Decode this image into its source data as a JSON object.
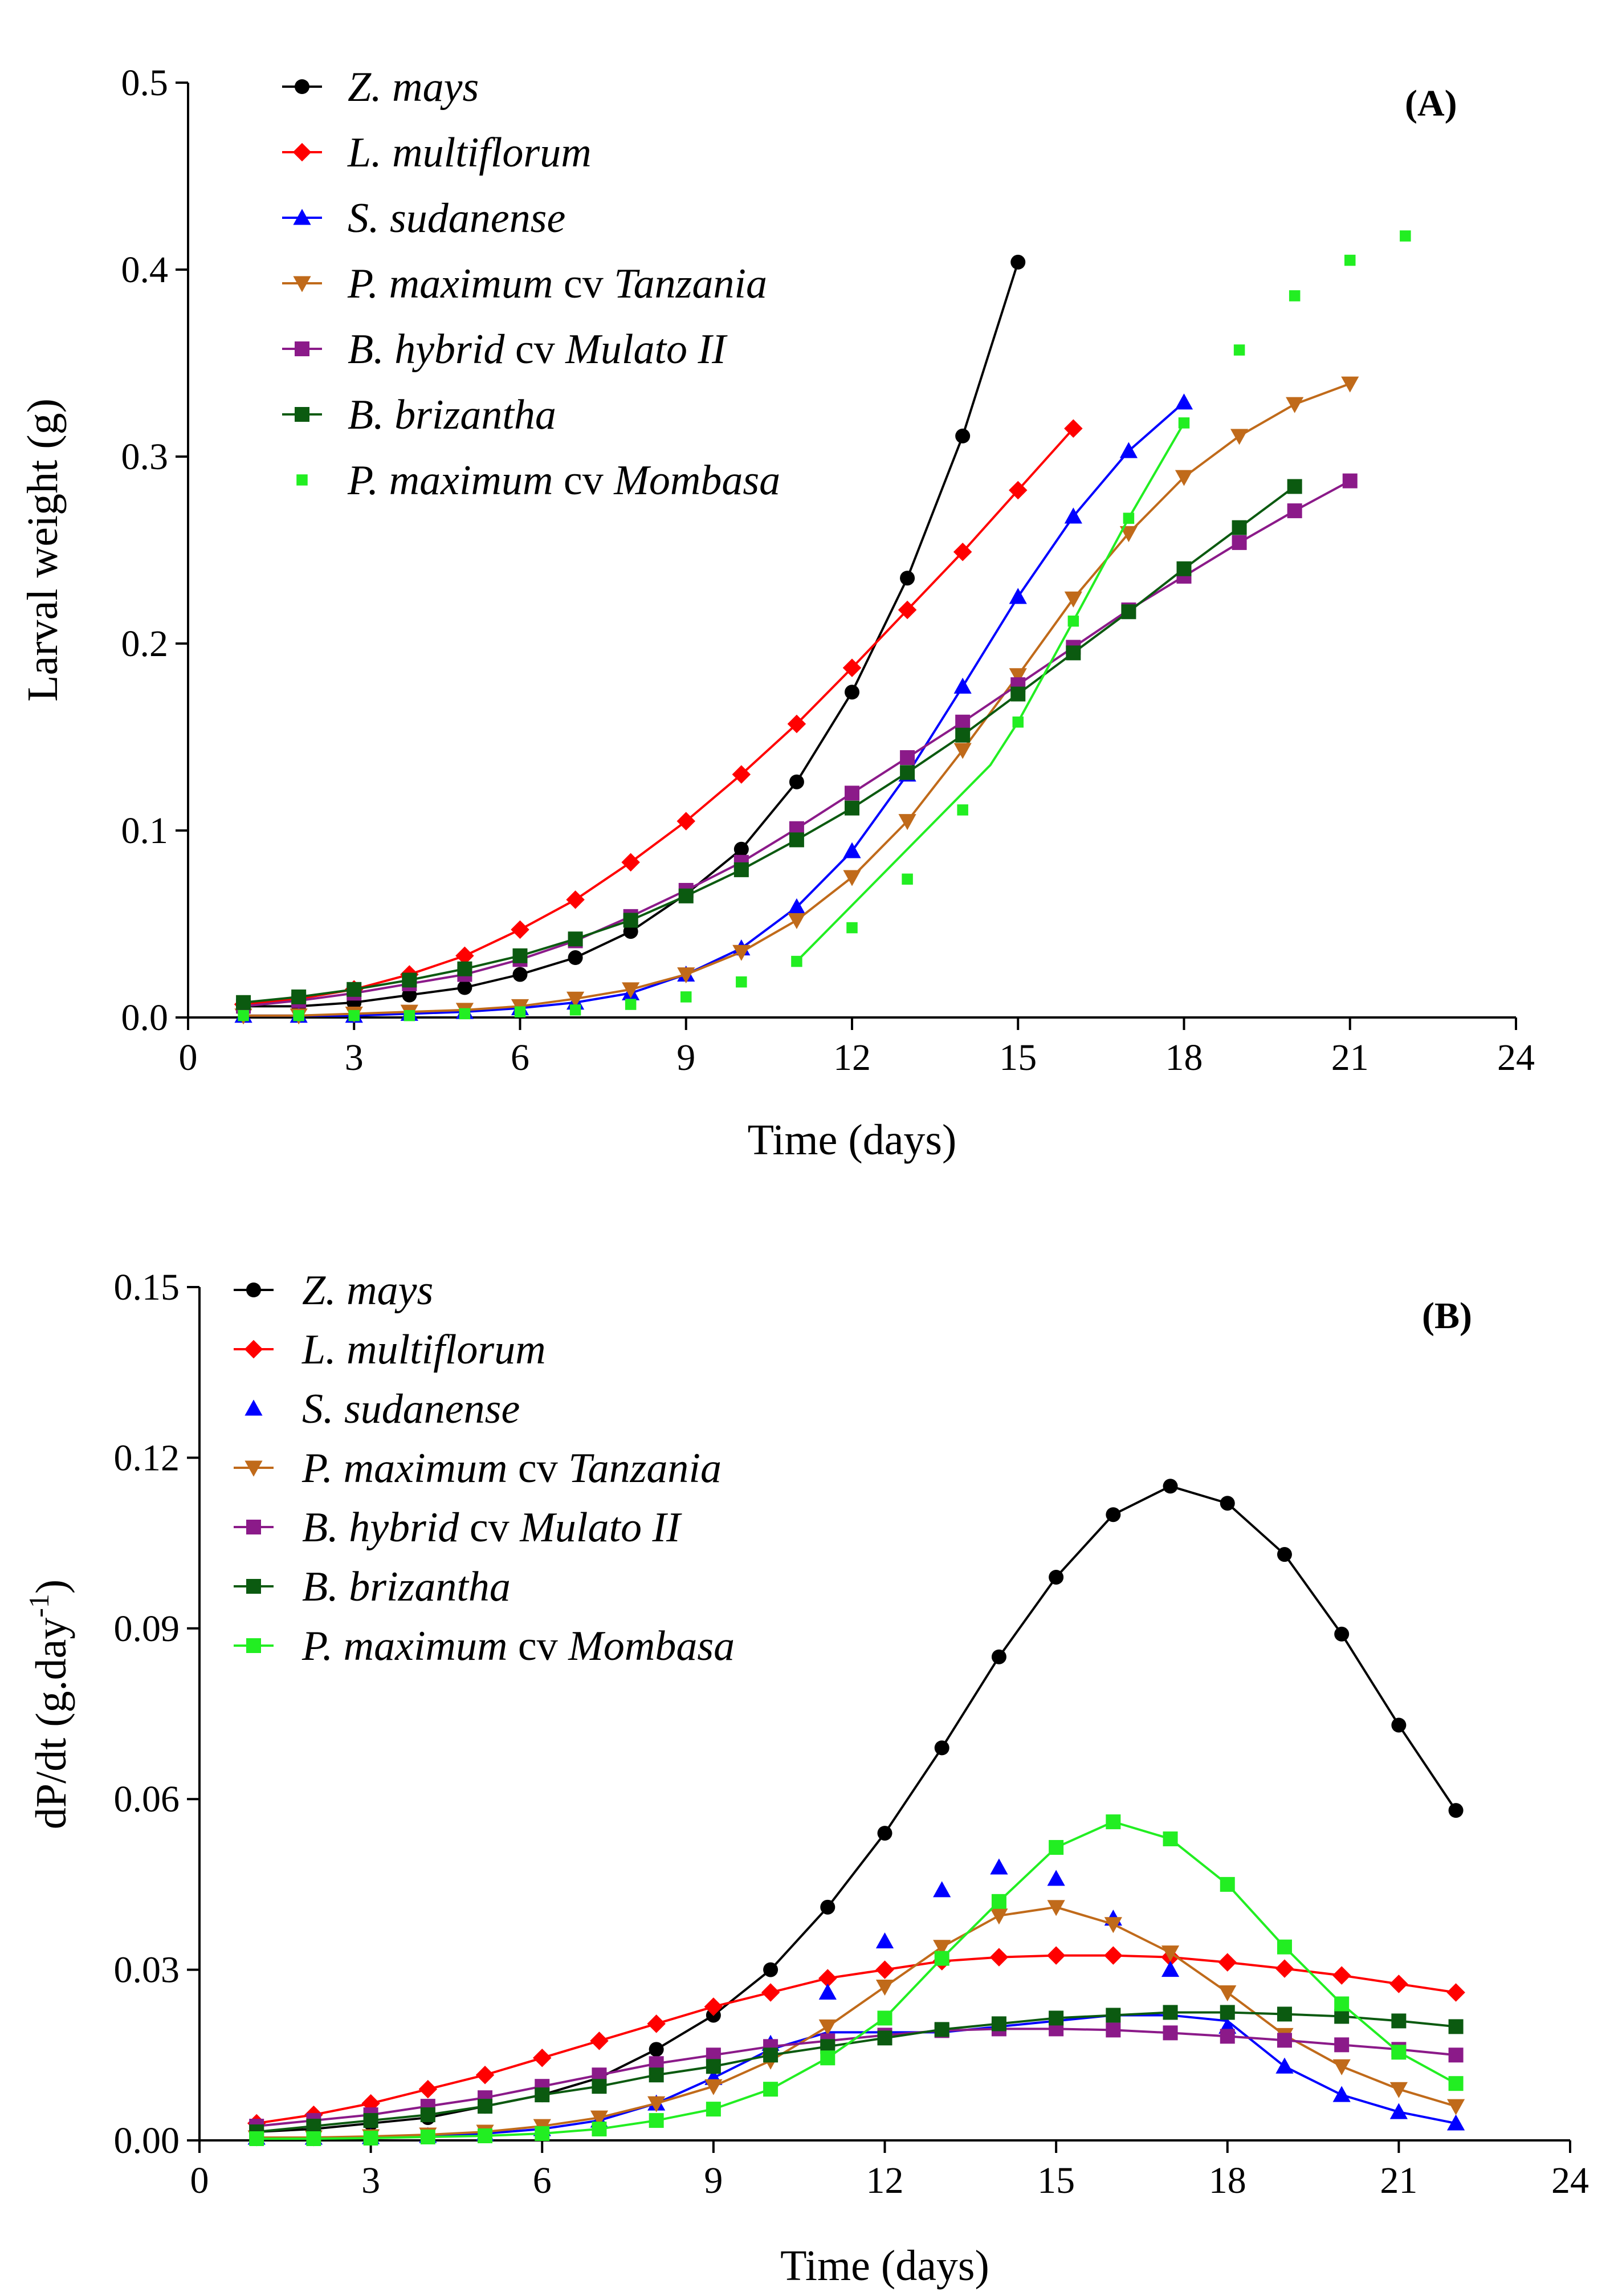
{
  "chart_data": [
    {
      "type": "line",
      "panel_label": "(A)",
      "xlabel": "Time (days)",
      "ylabel": "Larval weight (g)",
      "xlim": [
        0,
        24
      ],
      "ylim": [
        0,
        0.5
      ],
      "xticks": [
        0,
        3,
        6,
        9,
        12,
        15,
        18,
        21,
        24
      ],
      "yticks": [
        0.0,
        0.1,
        0.2,
        0.3,
        0.4,
        0.5
      ],
      "xtick_labels": [
        "0",
        "3",
        "6",
        "9",
        "12",
        "15",
        "18",
        "21",
        "24"
      ],
      "ytick_labels": [
        "0.0",
        "0.1",
        "0.2",
        "0.3",
        "0.4",
        "0.5"
      ],
      "legend_position": "top-left",
      "grid": false,
      "series": [
        {
          "name": "Z. mays",
          "name_parts": [
            {
              "t": "Z. mays",
              "i": true
            }
          ],
          "color": "#000000",
          "marker": "circle",
          "line": true,
          "x": [
            1,
            2,
            3,
            4,
            5,
            6,
            7,
            8,
            9,
            10,
            11,
            12,
            13,
            14,
            15
          ],
          "y": [
            0.006,
            0.006,
            0.008,
            0.012,
            0.016,
            0.023,
            0.032,
            0.046,
            0.066,
            0.09,
            0.126,
            0.174,
            0.235,
            0.311,
            0.404
          ]
        },
        {
          "name": "L. multiflorum",
          "name_parts": [
            {
              "t": "L. multiflorum",
              "i": true
            }
          ],
          "color": "#ff0000",
          "marker": "diamond",
          "line": true,
          "x": [
            1,
            2,
            3,
            4,
            5,
            6,
            7,
            8,
            9,
            10,
            11,
            12,
            13,
            14,
            15,
            16
          ],
          "y": [
            0.007,
            0.01,
            0.015,
            0.023,
            0.033,
            0.047,
            0.063,
            0.083,
            0.105,
            0.13,
            0.157,
            0.187,
            0.218,
            0.249,
            0.282,
            0.315
          ]
        },
        {
          "name": "S. sudanense",
          "name_parts": [
            {
              "t": "S. sudanense",
              "i": true
            }
          ],
          "color": "#0000ff",
          "marker": "triangle-up",
          "line": true,
          "x": [
            1,
            2,
            3,
            4,
            5,
            6,
            7,
            8,
            9,
            10,
            11,
            12,
            13,
            14,
            15,
            16,
            17,
            18
          ],
          "y": [
            0.001,
            0.001,
            0.001,
            0.002,
            0.003,
            0.005,
            0.008,
            0.013,
            0.023,
            0.037,
            0.059,
            0.089,
            0.13,
            0.177,
            0.225,
            0.268,
            0.303,
            0.329
          ]
        },
        {
          "name": "P. maximum cv Tanzania",
          "name_parts": [
            {
              "t": "P. maximum",
              "i": true
            },
            {
              "t": " cv ",
              "i": false
            },
            {
              "t": "Tanzania",
              "i": true
            }
          ],
          "color": "#c06a1a",
          "marker": "triangle-down",
          "line": true,
          "x": [
            1,
            2,
            3,
            4,
            5,
            6,
            7,
            8,
            9,
            10,
            11,
            12,
            13,
            14,
            15,
            16,
            17,
            18,
            19,
            20,
            21
          ],
          "y": [
            0.001,
            0.001,
            0.002,
            0.003,
            0.004,
            0.006,
            0.01,
            0.015,
            0.023,
            0.035,
            0.052,
            0.075,
            0.105,
            0.143,
            0.183,
            0.224,
            0.259,
            0.289,
            0.311,
            0.328,
            0.339
          ]
        },
        {
          "name": "B. hybrid cv Mulato II",
          "name_parts": [
            {
              "t": "B. hybrid",
              "i": true
            },
            {
              "t": " cv ",
              "i": false
            },
            {
              "t": "Mulato II",
              "i": true
            }
          ],
          "color": "#8b1a89",
          "marker": "square",
          "line": true,
          "x": [
            1,
            2,
            3,
            4,
            5,
            6,
            7,
            8,
            9,
            10,
            11,
            12,
            13,
            14,
            15,
            16,
            17,
            18,
            19,
            20,
            21
          ],
          "y": [
            0.006,
            0.009,
            0.013,
            0.018,
            0.023,
            0.031,
            0.041,
            0.054,
            0.068,
            0.083,
            0.101,
            0.12,
            0.139,
            0.158,
            0.178,
            0.198,
            0.218,
            0.236,
            0.254,
            0.271,
            0.287
          ]
        },
        {
          "name": "B. brizantha",
          "name_parts": [
            {
              "t": "B. brizantha",
              "i": true
            }
          ],
          "color": "#0b5a10",
          "marker": "square",
          "line": true,
          "x": [
            1,
            2,
            3,
            4,
            5,
            6,
            7,
            8,
            9,
            10,
            11,
            12,
            13,
            14,
            15,
            16,
            17,
            18,
            19,
            20
          ],
          "y": [
            0.008,
            0.011,
            0.015,
            0.02,
            0.026,
            0.033,
            0.042,
            0.052,
            0.065,
            0.079,
            0.095,
            0.112,
            0.131,
            0.151,
            0.173,
            0.195,
            0.217,
            0.24,
            0.262,
            0.284
          ]
        },
        {
          "name": "P. maximum cv Mombasa",
          "name_parts": [
            {
              "t": "P. maximum",
              "i": true
            },
            {
              "t": " cv ",
              "i": false
            },
            {
              "t": "Mombasa",
              "i": true
            }
          ],
          "color": "#22ee22",
          "marker": "small-square",
          "line": false,
          "x": [
            1,
            2,
            3,
            4,
            5,
            6,
            7,
            8,
            9,
            10,
            11,
            12,
            13,
            14,
            15,
            16,
            17,
            18,
            19,
            20,
            21,
            22
          ],
          "y": [
            0.001,
            0.001,
            0.001,
            0.001,
            0.002,
            0.003,
            0.004,
            0.007,
            0.011,
            0.019,
            0.03,
            0.048,
            0.074,
            0.111,
            0.158,
            0.212,
            0.267,
            0.318,
            0.357,
            0.386,
            0.405,
            0.418
          ],
          "fit_line": {
            "x": [
              11,
              14.5,
              15,
              16,
              17,
              18
            ],
            "y": [
              0.03,
              0.135,
              0.158,
              0.212,
              0.267,
              0.318
            ]
          }
        }
      ]
    },
    {
      "type": "line",
      "panel_label": "(B)",
      "xlabel": "Time (days)",
      "ylabel": "dP/dt (g.day",
      "ylabel_superscript": "-1",
      "ylabel_suffix": ")",
      "xlim": [
        0,
        24
      ],
      "ylim": [
        0,
        0.15
      ],
      "xticks": [
        0,
        3,
        6,
        9,
        12,
        15,
        18,
        21,
        24
      ],
      "yticks": [
        0.0,
        0.03,
        0.06,
        0.09,
        0.12,
        0.15
      ],
      "xtick_labels": [
        "0",
        "3",
        "6",
        "9",
        "12",
        "15",
        "18",
        "21",
        "24"
      ],
      "ytick_labels": [
        "0.00",
        "0.03",
        "0.06",
        "0.09",
        "0.12",
        "0.15"
      ],
      "legend_position": "top-left",
      "grid": false,
      "series": [
        {
          "name": "Z. mays",
          "name_parts": [
            {
              "t": "Z. mays",
              "i": true
            }
          ],
          "color": "#000000",
          "marker": "circle",
          "line": true,
          "x": [
            1,
            2,
            3,
            4,
            5,
            6,
            7,
            8,
            9,
            10,
            11,
            12,
            13,
            14,
            15,
            16,
            17,
            18,
            19,
            20,
            21,
            22
          ],
          "y": [
            0.0015,
            0.002,
            0.003,
            0.004,
            0.006,
            0.008,
            0.011,
            0.016,
            0.022,
            0.03,
            0.041,
            0.054,
            0.069,
            0.085,
            0.099,
            0.11,
            0.115,
            0.112,
            0.103,
            0.089,
            0.073,
            0.058
          ]
        },
        {
          "name": "L. multiflorum",
          "name_parts": [
            {
              "t": "L. multiflorum",
              "i": true
            }
          ],
          "color": "#ff0000",
          "marker": "diamond",
          "line": true,
          "x": [
            1,
            2,
            3,
            4,
            5,
            6,
            7,
            8,
            9,
            10,
            11,
            12,
            13,
            14,
            15,
            16,
            17,
            18,
            19,
            20,
            21,
            22
          ],
          "y": [
            0.003,
            0.0045,
            0.0065,
            0.009,
            0.0115,
            0.0145,
            0.0175,
            0.0205,
            0.0235,
            0.026,
            0.0285,
            0.03,
            0.0315,
            0.0322,
            0.0325,
            0.0325,
            0.0322,
            0.0313,
            0.0302,
            0.029,
            0.0275,
            0.026
          ]
        },
        {
          "name": "S. sudanense",
          "name_parts": [
            {
              "t": "S. sudanense",
              "i": true
            }
          ],
          "color": "#0000ff",
          "marker": "triangle-up",
          "line": false,
          "x": [
            1,
            2,
            3,
            4,
            5,
            6,
            7,
            8,
            9,
            10,
            11,
            12,
            13,
            14,
            15,
            16,
            17,
            18,
            19,
            20,
            21,
            22
          ],
          "y": [
            0.0005,
            0.0005,
            0.0006,
            0.0008,
            0.0012,
            0.002,
            0.0035,
            0.0065,
            0.011,
            0.017,
            0.026,
            0.035,
            0.044,
            0.048,
            0.046,
            0.039,
            0.03,
            0.02,
            0.013,
            0.008,
            0.005,
            0.003
          ],
          "fit_line": {
            "x": [
              1,
              2,
              3,
              4,
              5,
              6,
              7,
              8,
              9,
              10,
              11,
              12,
              13,
              14,
              15,
              16,
              17,
              18,
              19,
              20,
              21,
              22
            ],
            "y": [
              0.0005,
              0.0005,
              0.0006,
              0.0008,
              0.0012,
              0.002,
              0.0035,
              0.0065,
              0.011,
              0.016,
              0.019,
              0.019,
              0.019,
              0.02,
              0.021,
              0.022,
              0.022,
              0.021,
              0.013,
              0.008,
              0.005,
              0.003
            ]
          }
        },
        {
          "name": "P. maximum cv Tanzania",
          "name_parts": [
            {
              "t": "P. maximum",
              "i": true
            },
            {
              "t": " cv ",
              "i": false
            },
            {
              "t": "Tanzania",
              "i": true
            }
          ],
          "color": "#c06a1a",
          "marker": "triangle-down",
          "line": true,
          "x": [
            1,
            2,
            3,
            4,
            5,
            6,
            7,
            8,
            9,
            10,
            11,
            12,
            13,
            14,
            15,
            16,
            17,
            18,
            19,
            20,
            21,
            22
          ],
          "y": [
            0.0005,
            0.0005,
            0.0007,
            0.001,
            0.0015,
            0.0025,
            0.004,
            0.0065,
            0.0095,
            0.014,
            0.02,
            0.027,
            0.034,
            0.0395,
            0.041,
            0.038,
            0.033,
            0.026,
            0.0185,
            0.013,
            0.009,
            0.006
          ]
        },
        {
          "name": "B. hybrid cv Mulato II",
          "name_parts": [
            {
              "t": "B. hybrid",
              "i": true
            },
            {
              "t": " cv ",
              "i": false
            },
            {
              "t": "Mulato II",
              "i": true
            }
          ],
          "color": "#8b1a89",
          "marker": "square",
          "line": true,
          "x": [
            1,
            2,
            3,
            4,
            5,
            6,
            7,
            8,
            9,
            10,
            11,
            12,
            13,
            14,
            15,
            16,
            17,
            18,
            19,
            20,
            21,
            22
          ],
          "y": [
            0.0025,
            0.0035,
            0.0045,
            0.006,
            0.0075,
            0.0095,
            0.0115,
            0.0135,
            0.015,
            0.0165,
            0.0175,
            0.0185,
            0.0193,
            0.0196,
            0.0196,
            0.0194,
            0.0189,
            0.0183,
            0.0176,
            0.0168,
            0.016,
            0.015
          ]
        },
        {
          "name": "B. brizantha",
          "name_parts": [
            {
              "t": "B. brizantha",
              "i": true
            }
          ],
          "color": "#0b5a10",
          "marker": "square",
          "line": true,
          "x": [
            1,
            2,
            3,
            4,
            5,
            6,
            7,
            8,
            9,
            10,
            11,
            12,
            13,
            14,
            15,
            16,
            17,
            18,
            19,
            20,
            21,
            22
          ],
          "y": [
            0.0015,
            0.0025,
            0.0035,
            0.0045,
            0.006,
            0.008,
            0.0095,
            0.0115,
            0.013,
            0.015,
            0.0165,
            0.018,
            0.0195,
            0.0205,
            0.0215,
            0.022,
            0.0225,
            0.0225,
            0.0222,
            0.0218,
            0.021,
            0.02
          ]
        },
        {
          "name": "P. maximum cv Mombasa",
          "name_parts": [
            {
              "t": "P. maximum",
              "i": true
            },
            {
              "t": " cv ",
              "i": false
            },
            {
              "t": "Mombasa",
              "i": true
            }
          ],
          "color": "#22ee22",
          "marker": "square",
          "line": true,
          "x": [
            1,
            2,
            3,
            4,
            5,
            6,
            7,
            8,
            9,
            10,
            11,
            12,
            13,
            14,
            15,
            16,
            17,
            18,
            19,
            20,
            21,
            22
          ],
          "y": [
            0.0003,
            0.0003,
            0.0004,
            0.0006,
            0.0008,
            0.0012,
            0.002,
            0.0035,
            0.0055,
            0.009,
            0.0145,
            0.0215,
            0.032,
            0.042,
            0.0515,
            0.056,
            0.053,
            0.045,
            0.034,
            0.024,
            0.0155,
            0.01
          ]
        }
      ]
    }
  ]
}
